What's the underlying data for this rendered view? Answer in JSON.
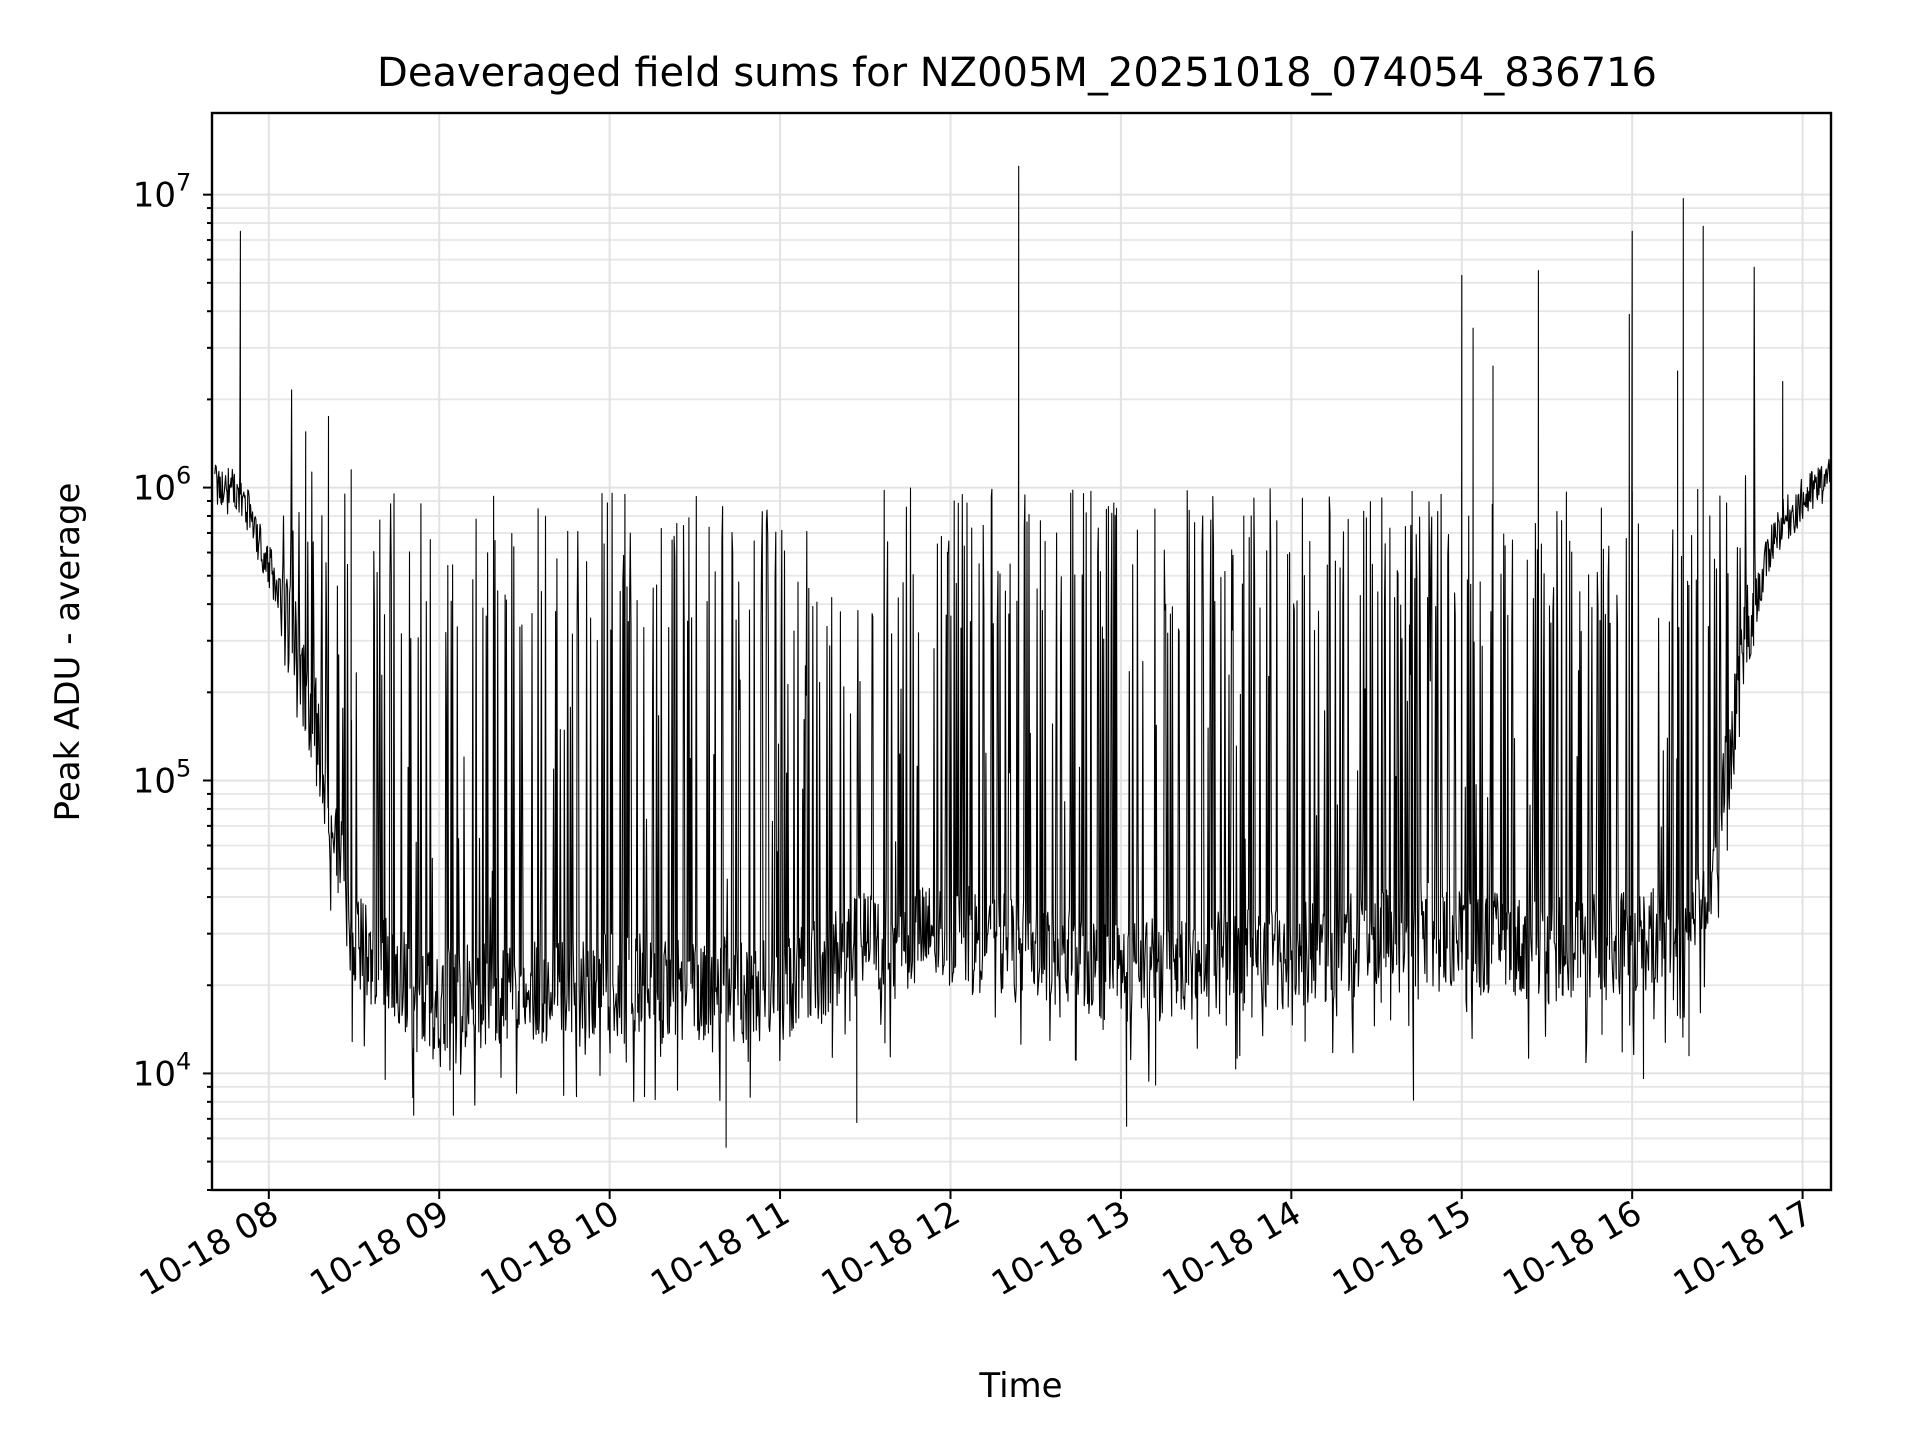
{
  "chart_data": {
    "type": "line",
    "title": "Deaveraged field sums for NZ005M_20251018_074054_836716",
    "xlabel": "Time",
    "ylabel": "Peak ADU - average",
    "yscale": "log",
    "grid": true,
    "xlim": [
      "2025-10-18 07:40",
      "2025-10-18 17:10"
    ],
    "ylim": [
      4000,
      19000000
    ],
    "x_ticks": [
      {
        "label": "10-18 08",
        "hour": 8
      },
      {
        "label": "10-18 09",
        "hour": 9
      },
      {
        "label": "10-18 10",
        "hour": 10
      },
      {
        "label": "10-18 11",
        "hour": 11
      },
      {
        "label": "10-18 12",
        "hour": 12
      },
      {
        "label": "10-18 13",
        "hour": 13
      },
      {
        "label": "10-18 14",
        "hour": 14
      },
      {
        "label": "10-18 15",
        "hour": 15
      },
      {
        "label": "10-18 16",
        "hour": 16
      },
      {
        "label": "10-18 17",
        "hour": 17
      }
    ],
    "y_ticks": [
      {
        "base": "10",
        "exp": "4",
        "value": 10000
      },
      {
        "base": "10",
        "exp": "5",
        "value": 100000
      },
      {
        "base": "10",
        "exp": "6",
        "value": 1000000
      },
      {
        "base": "10",
        "exp": "7",
        "value": 10000000
      }
    ],
    "series": [
      {
        "name": "peak ADU - average",
        "color": "#000000",
        "baseline_profile": [
          {
            "time": "07:41",
            "value": 1000000
          },
          {
            "time": "07:50",
            "value": 950000
          },
          {
            "time": "08:00",
            "value": 550000
          },
          {
            "time": "08:15",
            "value": 180000
          },
          {
            "time": "08:30",
            "value": 28000
          },
          {
            "time": "08:45",
            "value": 21000
          },
          {
            "time": "09:00",
            "value": 18000
          },
          {
            "time": "10:00",
            "value": 20000
          },
          {
            "time": "11:00",
            "value": 19000
          },
          {
            "time": "11:30",
            "value": 28000
          },
          {
            "time": "12:00",
            "value": 30000
          },
          {
            "time": "13:00",
            "value": 22000
          },
          {
            "time": "14:00",
            "value": 25000
          },
          {
            "time": "14:45",
            "value": 30000
          },
          {
            "time": "15:30",
            "value": 26000
          },
          {
            "time": "16:20",
            "value": 30000
          },
          {
            "time": "16:30",
            "value": 60000
          },
          {
            "time": "16:40",
            "value": 300000
          },
          {
            "time": "16:50",
            "value": 700000
          },
          {
            "time": "17:00",
            "value": 900000
          },
          {
            "time": "17:10",
            "value": 1100000
          }
        ],
        "peaks": [
          {
            "time": "07:50",
            "value": 7500000
          },
          {
            "time": "08:13",
            "value": 1550000
          },
          {
            "time": "08:21",
            "value": 1750000
          },
          {
            "time": "08:29",
            "value": 1150000
          },
          {
            "time": "12:24",
            "value": 12500000
          },
          {
            "time": "12:24",
            "value": 1750000
          },
          {
            "time": "15:00",
            "value": 5300000
          },
          {
            "time": "15:04",
            "value": 3500000
          },
          {
            "time": "15:11",
            "value": 2600000
          },
          {
            "time": "15:27",
            "value": 5500000
          },
          {
            "time": "15:59",
            "value": 3900000
          },
          {
            "time": "16:00",
            "value": 7500000
          },
          {
            "time": "16:16",
            "value": 2500000
          },
          {
            "time": "16:18",
            "value": 9700000
          },
          {
            "time": "16:25",
            "value": 7800000
          },
          {
            "time": "16:53",
            "value": 2300000
          }
        ],
        "dips": [
          {
            "time": "08:51",
            "value": 7200
          },
          {
            "time": "09:05",
            "value": 7200
          },
          {
            "time": "10:41",
            "value": 5600
          },
          {
            "time": "11:27",
            "value": 6800
          },
          {
            "time": "13:02",
            "value": 6600
          },
          {
            "time": "14:43",
            "value": 8100
          },
          {
            "time": "16:04",
            "value": 9600
          },
          {
            "time": "16:20",
            "value": 11500
          }
        ]
      }
    ]
  }
}
